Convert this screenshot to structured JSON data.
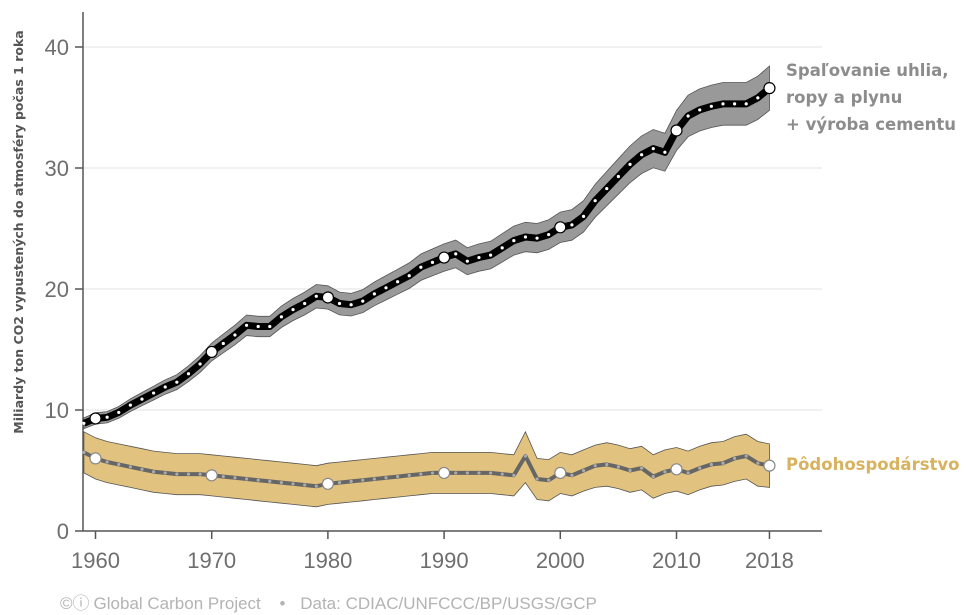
{
  "chart_data": {
    "type": "line",
    "title": "",
    "ylabel": "Miliardy ton CO2 vypustených do atmosféry počas 1 roka",
    "xlabel": "",
    "xlim": [
      1959,
      2022
    ],
    "ylim": [
      0,
      43
    ],
    "x_ticks": [
      1960,
      1970,
      1980,
      1990,
      2000,
      2010,
      2018
    ],
    "y_ticks": [
      0,
      10,
      20,
      30,
      40
    ],
    "grid": "horizontal",
    "series": [
      {
        "name": "Spaľovanie uhlia, ropy a plynu + výroba cementu",
        "label_lines": [
          "Spaľovanie uhlia,",
          "ropy a plynu",
          "+ výroba cementu"
        ],
        "color": "#000000",
        "band_color": "#999999",
        "uncertainty": 0.05,
        "x": [
          1959,
          1960,
          1961,
          1962,
          1963,
          1964,
          1965,
          1966,
          1967,
          1968,
          1969,
          1970,
          1971,
          1972,
          1973,
          1974,
          1975,
          1976,
          1977,
          1978,
          1979,
          1980,
          1981,
          1982,
          1983,
          1984,
          1985,
          1986,
          1987,
          1988,
          1989,
          1990,
          1991,
          1992,
          1993,
          1994,
          1995,
          1996,
          1997,
          1998,
          1999,
          2000,
          2001,
          2002,
          2003,
          2004,
          2005,
          2006,
          2007,
          2008,
          2009,
          2010,
          2011,
          2012,
          2013,
          2014,
          2015,
          2016,
          2017,
          2018
        ],
        "values": [
          8.9,
          9.3,
          9.4,
          9.8,
          10.4,
          10.9,
          11.4,
          11.9,
          12.3,
          13.0,
          13.8,
          14.8,
          15.5,
          16.2,
          17.0,
          16.9,
          16.9,
          17.7,
          18.3,
          18.8,
          19.4,
          19.3,
          18.8,
          18.7,
          19.0,
          19.6,
          20.1,
          20.6,
          21.1,
          21.8,
          22.2,
          22.6,
          22.9,
          22.3,
          22.6,
          22.8,
          23.4,
          24.0,
          24.3,
          24.2,
          24.5,
          25.1,
          25.3,
          26.0,
          27.3,
          28.3,
          29.3,
          30.3,
          31.1,
          31.6,
          31.3,
          33.1,
          34.3,
          34.8,
          35.1,
          35.3,
          35.3,
          35.3,
          35.8,
          36.6
        ],
        "highlighted_years": [
          1960,
          1970,
          1980,
          1990,
          2000,
          2010,
          2018
        ]
      },
      {
        "name": "Pôdohospodárstvo",
        "label_lines": [
          "Pôdohospodárstvo"
        ],
        "color": "#666666",
        "dot_color": "#aaaaaa",
        "band_color": "#e1c27e",
        "x": [
          1959,
          1960,
          1961,
          1962,
          1963,
          1964,
          1965,
          1966,
          1967,
          1968,
          1969,
          1970,
          1971,
          1972,
          1973,
          1974,
          1975,
          1976,
          1977,
          1978,
          1979,
          1980,
          1981,
          1982,
          1983,
          1984,
          1985,
          1986,
          1987,
          1988,
          1989,
          1990,
          1991,
          1992,
          1993,
          1994,
          1995,
          1996,
          1997,
          1998,
          1999,
          2000,
          2001,
          2002,
          2003,
          2004,
          2005,
          2006,
          2007,
          2008,
          2009,
          2010,
          2011,
          2012,
          2013,
          2014,
          2015,
          2016,
          2017,
          2018
        ],
        "values": [
          6.5,
          6.0,
          5.7,
          5.5,
          5.3,
          5.1,
          4.9,
          4.8,
          4.7,
          4.7,
          4.7,
          4.6,
          4.5,
          4.4,
          4.3,
          4.2,
          4.1,
          4.0,
          3.9,
          3.8,
          3.7,
          3.9,
          4.0,
          4.1,
          4.2,
          4.3,
          4.4,
          4.5,
          4.6,
          4.7,
          4.8,
          4.8,
          4.8,
          4.8,
          4.8,
          4.8,
          4.7,
          4.6,
          6.2,
          4.3,
          4.2,
          4.8,
          4.6,
          5.0,
          5.4,
          5.5,
          5.3,
          5.0,
          5.2,
          4.5,
          4.9,
          5.1,
          4.8,
          5.2,
          5.5,
          5.6,
          6.0,
          6.2,
          5.6,
          5.4
        ],
        "lower": [
          4.8,
          4.3,
          4.0,
          3.8,
          3.6,
          3.4,
          3.2,
          3.1,
          3.0,
          3.0,
          3.0,
          2.9,
          2.8,
          2.7,
          2.6,
          2.5,
          2.4,
          2.3,
          2.2,
          2.1,
          2.0,
          2.2,
          2.3,
          2.4,
          2.5,
          2.6,
          2.7,
          2.8,
          2.9,
          3.0,
          3.1,
          3.1,
          3.1,
          3.1,
          3.1,
          3.1,
          3.0,
          2.9,
          4.0,
          2.6,
          2.5,
          3.1,
          2.9,
          3.3,
          3.6,
          3.7,
          3.5,
          3.2,
          3.4,
          2.7,
          3.1,
          3.3,
          3.0,
          3.4,
          3.7,
          3.8,
          4.1,
          4.3,
          3.7,
          3.6
        ],
        "upper": [
          8.2,
          7.7,
          7.4,
          7.2,
          7.0,
          6.8,
          6.6,
          6.5,
          6.4,
          6.4,
          6.4,
          6.3,
          6.2,
          6.1,
          6.0,
          5.9,
          5.8,
          5.7,
          5.6,
          5.5,
          5.4,
          5.6,
          5.7,
          5.8,
          5.9,
          6.0,
          6.1,
          6.2,
          6.3,
          6.4,
          6.5,
          6.5,
          6.5,
          6.5,
          6.5,
          6.5,
          6.4,
          6.3,
          8.2,
          6.0,
          5.9,
          6.5,
          6.3,
          6.7,
          7.1,
          7.3,
          7.1,
          6.8,
          7.0,
          6.3,
          6.7,
          6.9,
          6.6,
          7.0,
          7.3,
          7.4,
          7.8,
          8.0,
          7.4,
          7.2
        ],
        "highlighted_years": [
          1960,
          1970,
          1980,
          1990,
          2000,
          2010,
          2018
        ]
      }
    ]
  },
  "footer": {
    "cc_icons": "©ⓘ",
    "source_name": "Global Carbon Project",
    "separator": "•",
    "data_credit": "Data: CDIAC/UNFCCC/BP/USGS/GCP"
  }
}
